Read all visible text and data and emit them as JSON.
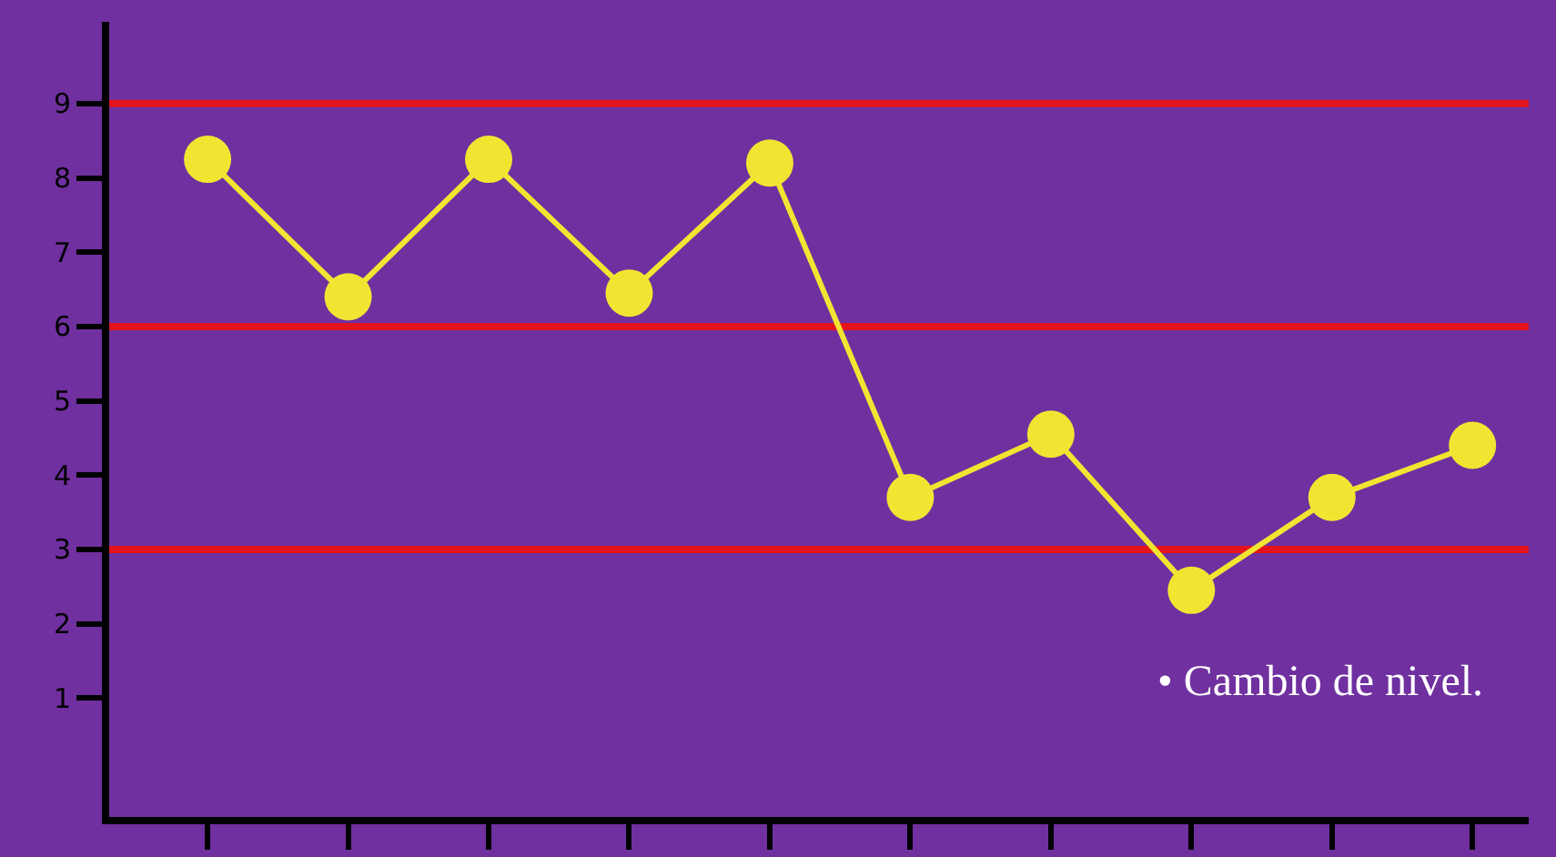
{
  "chart_data": {
    "type": "line",
    "categories": [
      null,
      null,
      null,
      null,
      null,
      null,
      null,
      null,
      null,
      null
    ],
    "series": [
      {
        "color": "#f2e532",
        "values": [
          8.25,
          6.4,
          8.25,
          6.45,
          8.2,
          3.7,
          4.55,
          2.45,
          3.7,
          4.4
        ]
      }
    ],
    "ylim": [
      -0.6,
      10.1
    ],
    "yticks": [
      1,
      2,
      3,
      4,
      5,
      6,
      7,
      8,
      9
    ],
    "ref_lines": [
      {
        "axis": "y",
        "value": 9,
        "color": "#e3141c"
      },
      {
        "axis": "y",
        "value": 6,
        "color": "#e3141c"
      },
      {
        "axis": "y",
        "value": 3,
        "color": "#e3141c"
      }
    ],
    "annotations": [
      "• Cambio de nivel."
    ],
    "marker": "circle",
    "line_style": "solid",
    "grid": false,
    "tick_labels": "y"
  }
}
